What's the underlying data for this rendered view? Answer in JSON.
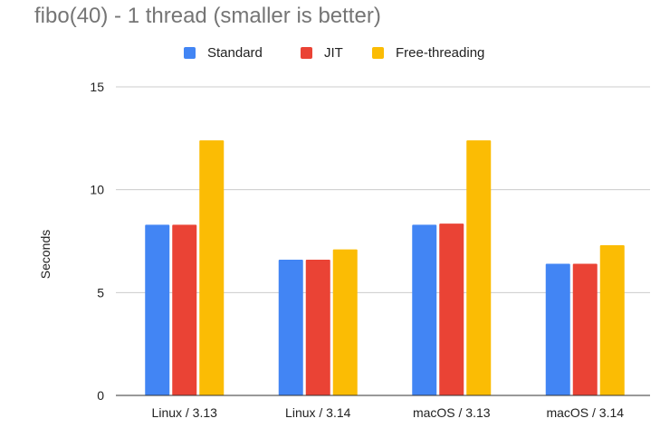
{
  "chart_data": {
    "type": "bar",
    "title": "fibo(40) - 1 thread (smaller is better)",
    "xlabel": "",
    "ylabel": "Seconds",
    "ylim": [
      0,
      15
    ],
    "yticks": [
      0,
      5,
      10,
      15
    ],
    "grid": true,
    "legend_position": "top-center",
    "categories": [
      "Linux / 3.13",
      "Linux / 3.14",
      "macOS / 3.13",
      "macOS / 3.14"
    ],
    "series": [
      {
        "name": "Standard",
        "color": "#4285f4",
        "values": [
          8.3,
          6.6,
          8.3,
          6.4
        ]
      },
      {
        "name": "JIT",
        "color": "#ea4335",
        "values": [
          8.3,
          6.6,
          8.35,
          6.4
        ]
      },
      {
        "name": "Free-threading",
        "color": "#fbbc04",
        "values": [
          12.4,
          7.1,
          12.4,
          7.3
        ]
      }
    ]
  }
}
